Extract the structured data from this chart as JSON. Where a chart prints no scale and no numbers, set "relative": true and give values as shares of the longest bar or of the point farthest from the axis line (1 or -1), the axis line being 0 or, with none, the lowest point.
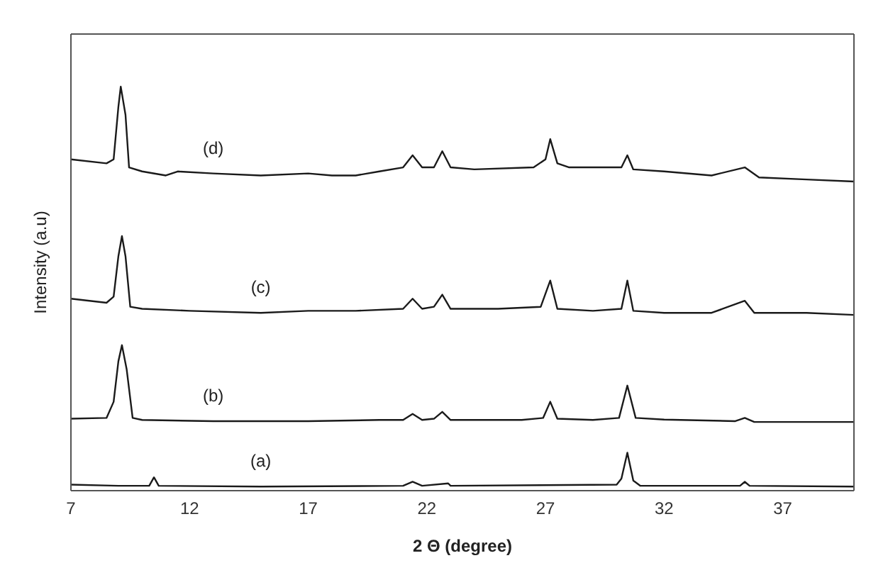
{
  "chart_data": {
    "type": "line",
    "relative": true,
    "xlabel": "2 Θ (degree)",
    "ylabel": "Intensity (a.u)",
    "xlim": [
      7,
      40
    ],
    "xticks": [
      7,
      12,
      17,
      22,
      27,
      32,
      37
    ],
    "marker": "none",
    "line_style": "solid",
    "series": [
      {
        "name": "(a)",
        "color": "#1a1a1a",
        "x": [
          7,
          9,
          10.3,
          10.5,
          10.7,
          15,
          21,
          21.4,
          21.8,
          22.9,
          23,
          30,
          30.2,
          30.45,
          30.7,
          31,
          35.2,
          35.4,
          35.6,
          40
        ],
        "values": [
          0.015,
          0.012,
          0.012,
          0.033,
          0.012,
          0.01,
          0.012,
          0.022,
          0.012,
          0.018,
          0.012,
          0.015,
          0.03,
          0.094,
          0.025,
          0.012,
          0.012,
          0.022,
          0.012,
          0.01
        ]
      },
      {
        "name": "(b)",
        "color": "#1a1a1a",
        "x": [
          7,
          8.5,
          8.8,
          9,
          9.15,
          9.35,
          9.6,
          10,
          13,
          17,
          20,
          21,
          21.4,
          21.8,
          22.3,
          22.65,
          23,
          26,
          26.9,
          27.2,
          27.5,
          29,
          30.1,
          30.45,
          30.8,
          32,
          35,
          35.4,
          35.8,
          40
        ],
        "values": [
          0.178,
          0.18,
          0.22,
          0.32,
          0.36,
          0.3,
          0.18,
          0.175,
          0.172,
          0.172,
          0.175,
          0.175,
          0.19,
          0.175,
          0.178,
          0.195,
          0.175,
          0.175,
          0.18,
          0.22,
          0.178,
          0.175,
          0.18,
          0.26,
          0.18,
          0.176,
          0.172,
          0.18,
          0.17,
          0.17
        ]
      },
      {
        "name": "(c)",
        "color": "#1a1a1a",
        "x": [
          7,
          8.5,
          8.8,
          9,
          9.15,
          9.3,
          9.5,
          10,
          12,
          15,
          17,
          19,
          21,
          21.4,
          21.8,
          22.3,
          22.65,
          23,
          25,
          26.8,
          27.2,
          27.5,
          29,
          30.2,
          30.45,
          30.7,
          32,
          34,
          35.4,
          35.8,
          38,
          40
        ],
        "values": [
          0.475,
          0.465,
          0.48,
          0.58,
          0.63,
          0.58,
          0.455,
          0.45,
          0.445,
          0.44,
          0.445,
          0.445,
          0.45,
          0.475,
          0.45,
          0.455,
          0.485,
          0.45,
          0.45,
          0.455,
          0.52,
          0.45,
          0.445,
          0.45,
          0.52,
          0.445,
          0.44,
          0.44,
          0.47,
          0.44,
          0.44,
          0.435
        ]
      },
      {
        "name": "(d)",
        "color": "#1a1a1a",
        "x": [
          7,
          8.5,
          8.8,
          9,
          9.1,
          9.3,
          9.45,
          10,
          11,
          11.5,
          13,
          15,
          17,
          18,
          19,
          20,
          21,
          21.4,
          21.8,
          22.3,
          22.65,
          23,
          24,
          26.5,
          27,
          27.2,
          27.5,
          28,
          29,
          30.2,
          30.45,
          30.7,
          32,
          34,
          35.4,
          36,
          38,
          40
        ],
        "values": [
          0.82,
          0.81,
          0.82,
          0.95,
          1,
          0.93,
          0.8,
          0.79,
          0.78,
          0.79,
          0.785,
          0.78,
          0.785,
          0.78,
          0.78,
          0.79,
          0.8,
          0.83,
          0.8,
          0.8,
          0.84,
          0.8,
          0.795,
          0.8,
          0.82,
          0.87,
          0.81,
          0.8,
          0.8,
          0.8,
          0.83,
          0.795,
          0.79,
          0.78,
          0.8,
          0.775,
          0.77,
          0.765
        ]
      }
    ]
  }
}
